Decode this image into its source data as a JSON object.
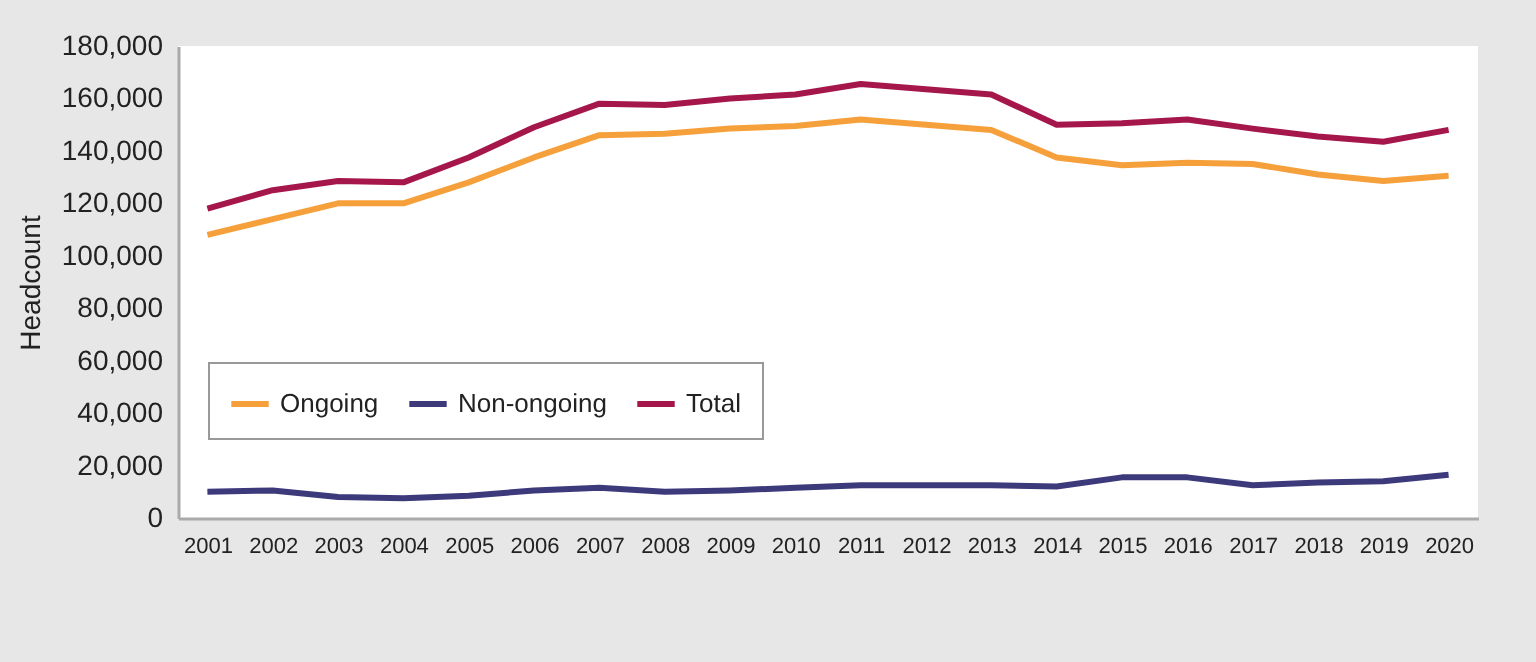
{
  "chart_data": {
    "type": "line",
    "ylabel": "Headcount",
    "categories": [
      "2001",
      "2002",
      "2003",
      "2004",
      "2005",
      "2006",
      "2007",
      "2008",
      "2009",
      "2010",
      "2011",
      "2012",
      "2013",
      "2014",
      "2015",
      "2016",
      "2017",
      "2018",
      "2019",
      "2020"
    ],
    "series": [
      {
        "name": "Ongoing",
        "color": "#f6a03c",
        "values": [
          108000,
          114000,
          120000,
          120000,
          128000,
          137500,
          146000,
          146500,
          148500,
          149500,
          152000,
          150000,
          148000,
          137500,
          134500,
          135500,
          135000,
          131000,
          128500,
          130500
        ]
      },
      {
        "name": "Non-ongoing",
        "color": "#3d3a7c",
        "values": [
          10000,
          10500,
          8000,
          7500,
          8500,
          10500,
          11500,
          10000,
          10500,
          11500,
          12500,
          12500,
          12500,
          12000,
          15500,
          15500,
          12500,
          13500,
          14000,
          16500
        ]
      },
      {
        "name": "Total",
        "color": "#a5174b",
        "values": [
          118000,
          125000,
          128500,
          128000,
          137500,
          149000,
          158000,
          157500,
          160000,
          161500,
          165500,
          163500,
          161500,
          150000,
          150500,
          152000,
          148500,
          145500,
          143500,
          148000
        ]
      }
    ],
    "ylim": [
      0,
      180000
    ],
    "yticks": [
      0,
      {
        "value": 20000,
        "label": "20,000"
      },
      {
        "value": 40000,
        "label": "40,000"
      },
      {
        "value": 60000,
        "label": "60,000"
      },
      {
        "value": 80000,
        "label": "80,000"
      },
      {
        "value": 100000,
        "label": "100,000"
      },
      {
        "value": 120000,
        "label": "120,000"
      },
      {
        "value": 140000,
        "label": "140,000"
      },
      {
        "value": 160000,
        "label": "160,000"
      },
      {
        "value": 180000,
        "label": "180,000"
      }
    ],
    "grid": false,
    "legend": "bottom left",
    "marker": "none",
    "line_style": "solid"
  }
}
